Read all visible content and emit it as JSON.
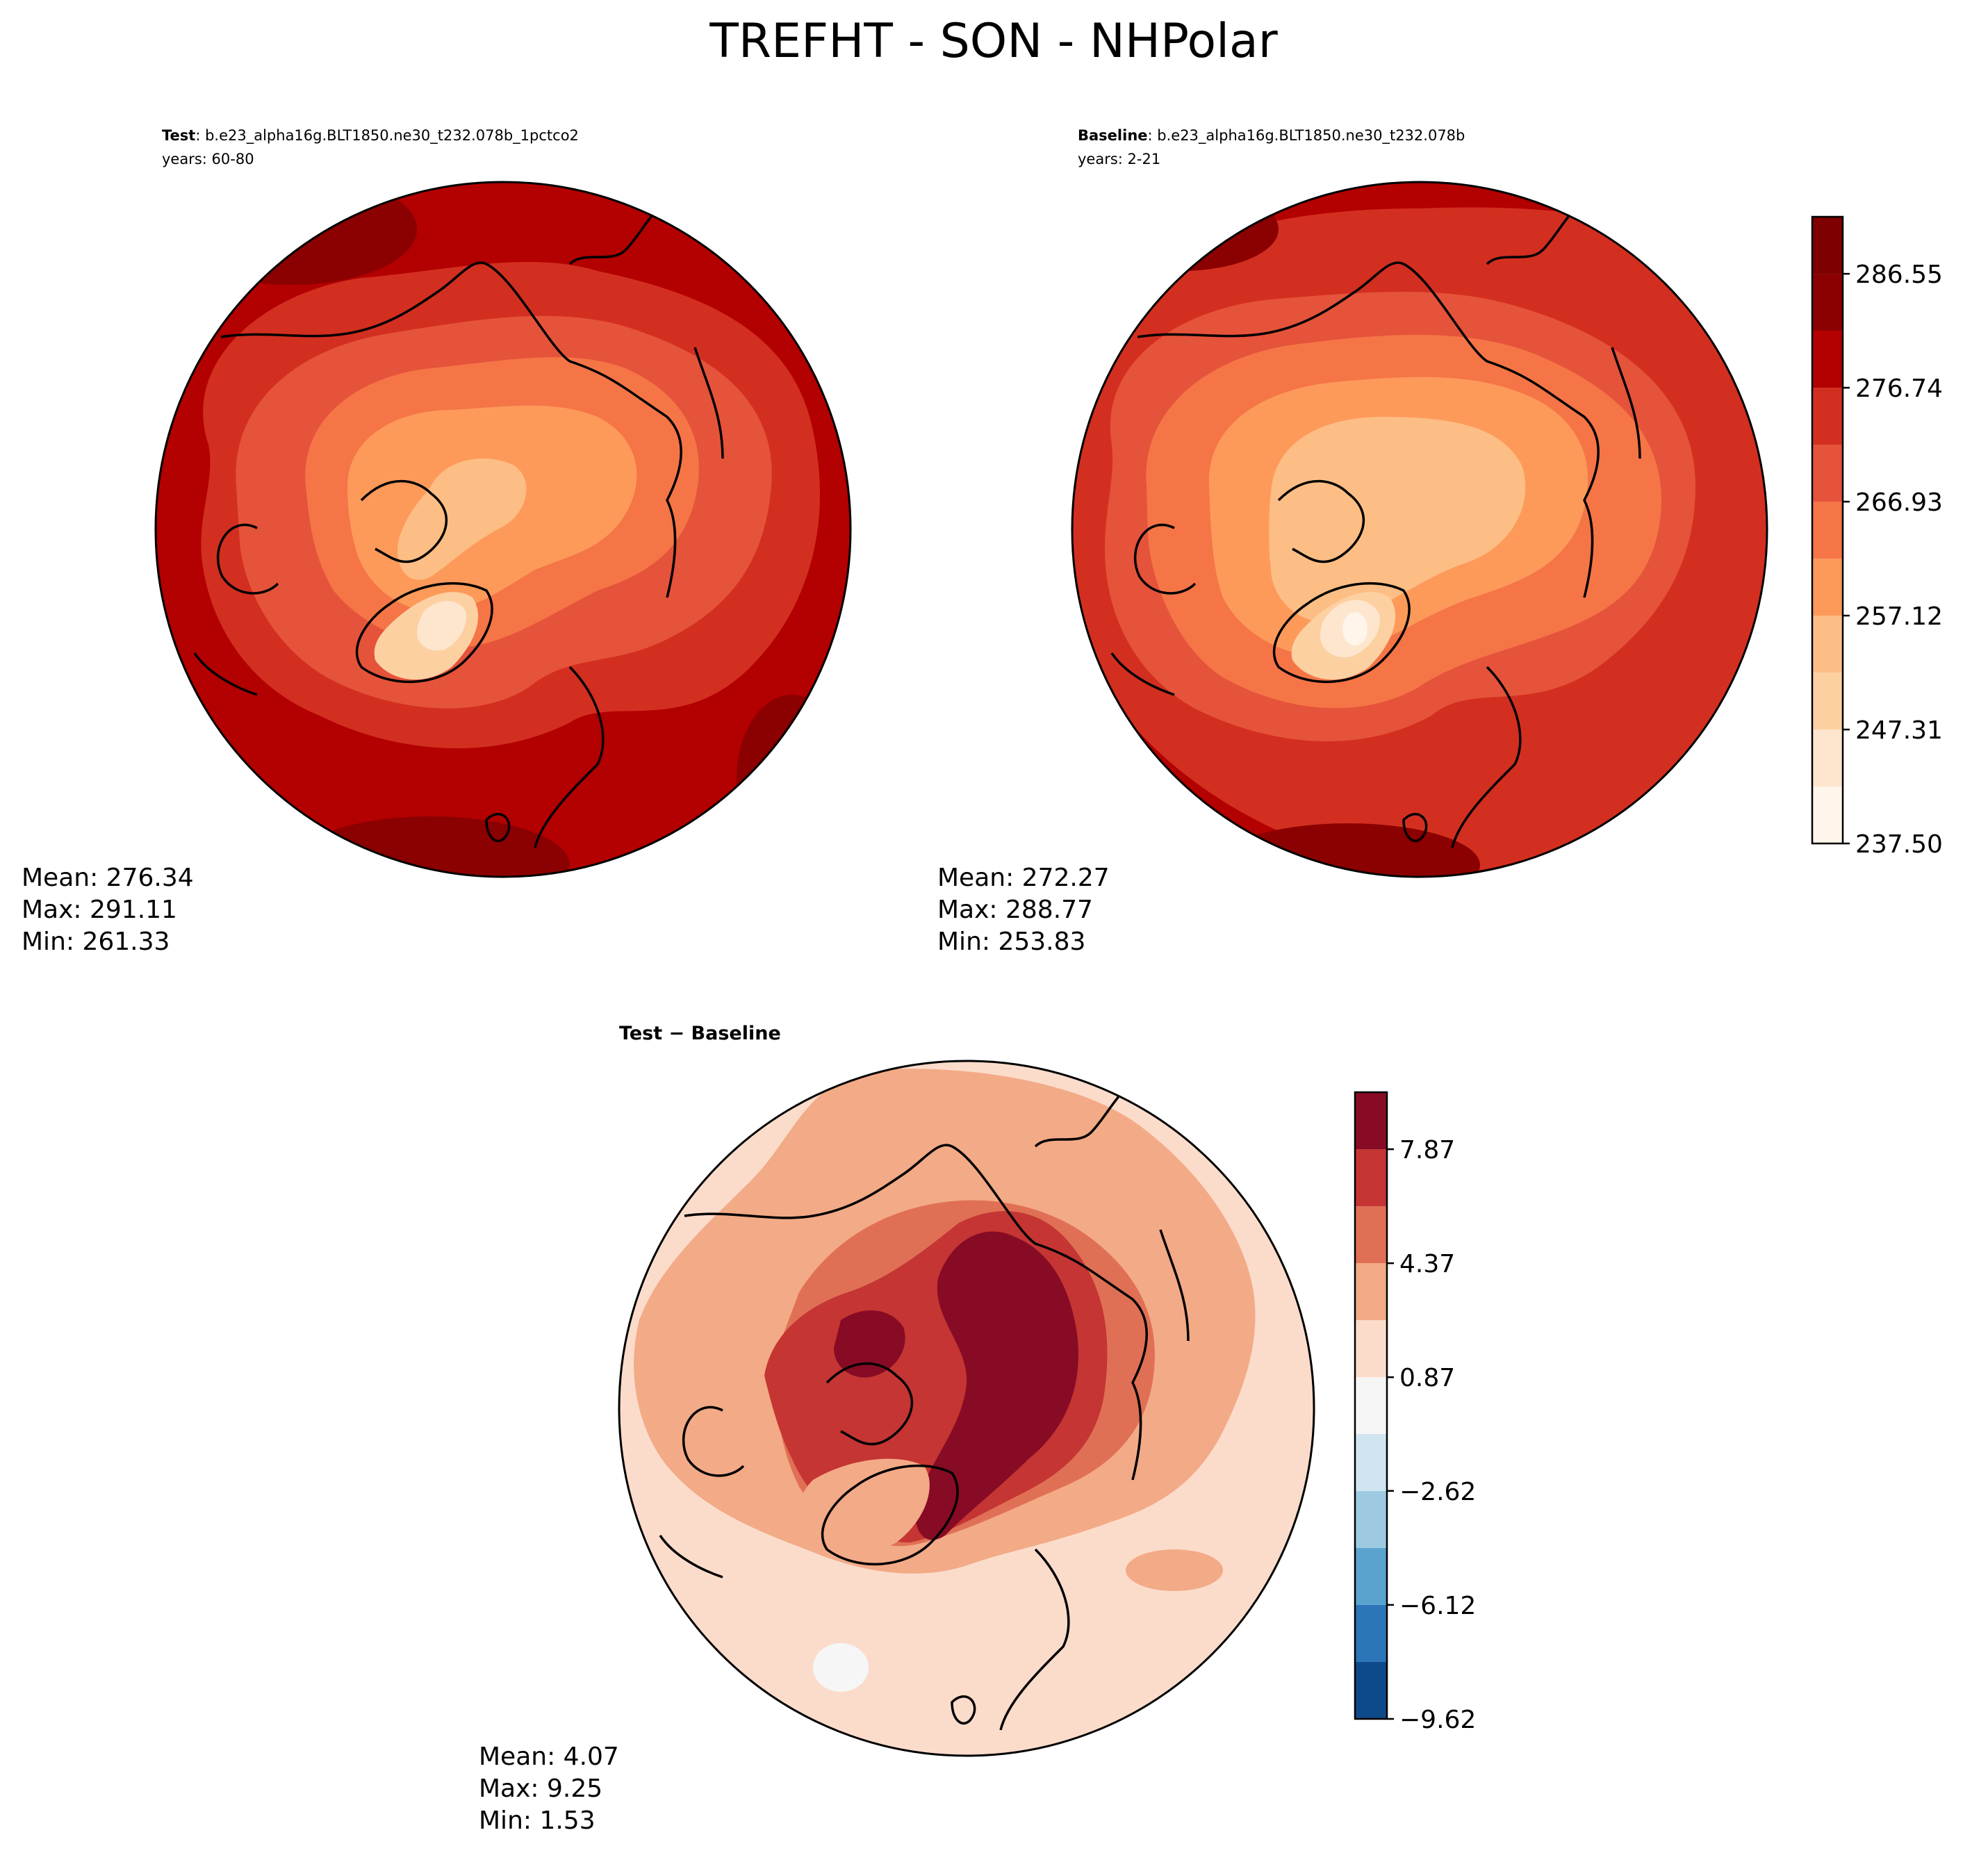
{
  "figure": {
    "title": "TREFHT - SON - NHPolar"
  },
  "panels": {
    "test": {
      "label_bold": "Test",
      "label_case": ": b.e23_alpha16g.BLT1850.ne30_t232.078b_1pctco2",
      "years": "years: 60-80",
      "stats": [
        "Mean: 276.34",
        "Max: 291.11",
        "Min: 261.33"
      ]
    },
    "baseline": {
      "label_bold": "Baseline",
      "label_case": ": b.e23_alpha16g.BLT1850.ne30_t232.078b",
      "years": "years: 2-21",
      "stats": [
        "Mean: 272.27",
        "Max: 288.77",
        "Min: 253.83"
      ]
    },
    "diff": {
      "label": "Test − Baseline",
      "stats": [
        "Mean:  4.07",
        "Max:  9.25",
        "Min:  1.53"
      ]
    }
  },
  "chart_data": [
    {
      "type": "heatmap",
      "name": "Test",
      "projection": "north-polar-stereographic",
      "colorbar_ticks": [
        "237.50",
        "247.31",
        "257.12",
        "266.93",
        "276.74",
        "286.55"
      ],
      "levels": [
        237.5,
        242.4,
        247.31,
        252.22,
        257.12,
        262.03,
        266.93,
        271.84,
        276.74,
        281.65,
        286.55,
        291.46
      ],
      "mean": 276.34,
      "max": 291.11,
      "min": 261.33
    },
    {
      "type": "heatmap",
      "name": "Baseline",
      "projection": "north-polar-stereographic",
      "colorbar_ticks": [
        "237.50",
        "247.31",
        "257.12",
        "266.93",
        "276.74",
        "286.55"
      ],
      "levels": [
        237.5,
        242.4,
        247.31,
        252.22,
        257.12,
        262.03,
        266.93,
        271.84,
        276.74,
        281.65,
        286.55,
        291.46
      ],
      "mean": 272.27,
      "max": 288.77,
      "min": 253.83
    },
    {
      "type": "heatmap",
      "name": "Test − Baseline",
      "projection": "north-polar-stereographic",
      "colorbar_ticks": [
        "−9.62",
        "−6.12",
        "−2.62",
        "0.87",
        "4.37",
        "7.87"
      ],
      "levels": [
        -9.62,
        -7.87,
        -6.12,
        -4.37,
        -2.62,
        -0.87,
        0.87,
        2.62,
        4.37,
        6.12,
        7.87,
        9.62
      ],
      "mean": 4.07,
      "max": 9.25,
      "min": 1.53
    }
  ],
  "colors": {
    "reds": [
      "#fff5eb",
      "#fee6ce",
      "#fdd0a2",
      "#fdbe85",
      "#fd9a5a",
      "#f57547",
      "#e5533a",
      "#d32f20",
      "#b30000",
      "#8b0000",
      "#7f0000"
    ],
    "diff": [
      "#0d4a8a",
      "#2c75b8",
      "#5ba3cf",
      "#9ecae1",
      "#d1e4f1",
      "#f6f6f6",
      "#fbdccb",
      "#f3aa87",
      "#e07055",
      "#c43533",
      "#870b24"
    ]
  }
}
